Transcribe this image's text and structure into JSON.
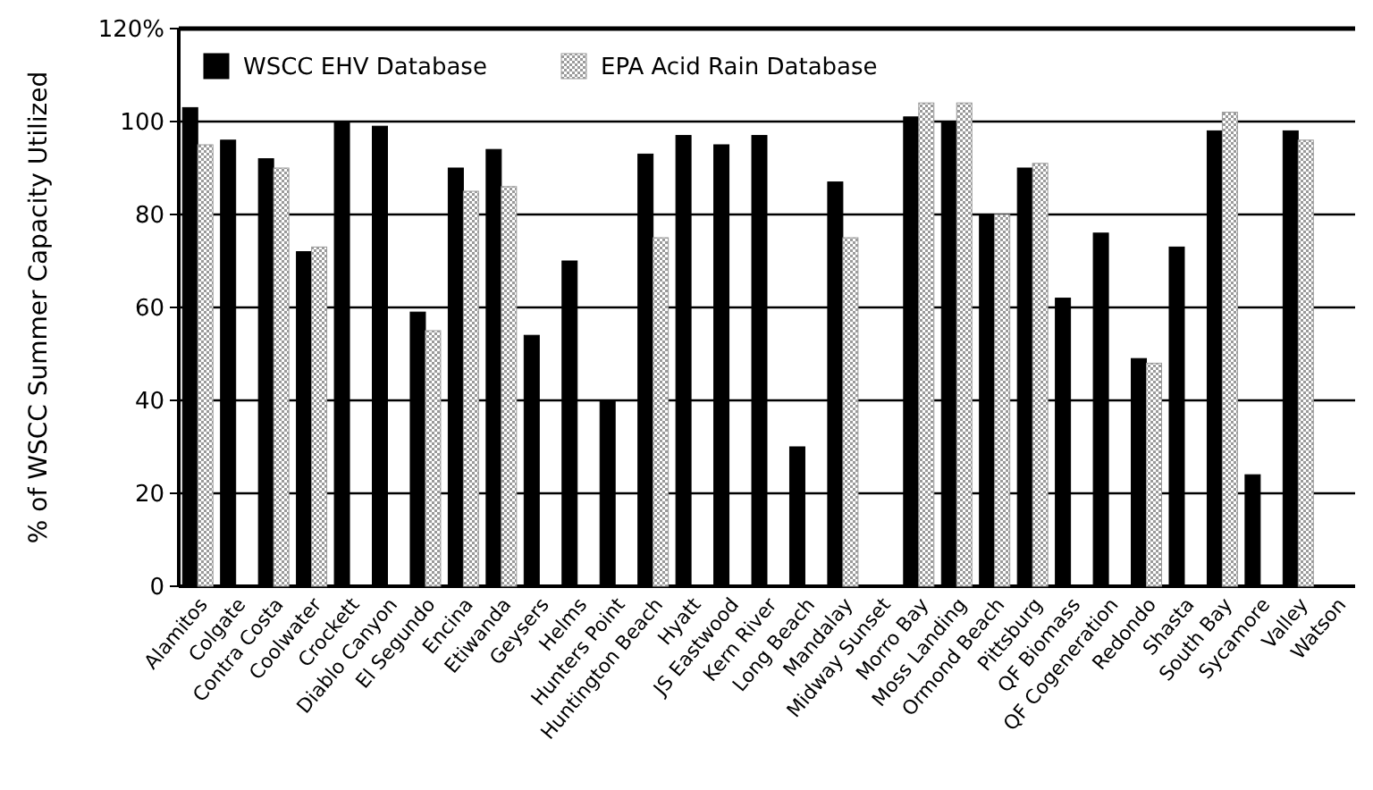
{
  "chart_data": {
    "type": "bar",
    "ylabel": "% of WSCC Summer Capacity Utilized",
    "categories": [
      "Alamitos",
      "Colgate",
      "Contra Costa",
      "Coolwater",
      "Crockett",
      "Diablo Canyon",
      "El Segundo",
      "Encina",
      "Etiwanda",
      "Geysers",
      "Helms",
      "Hunters Point",
      "Huntington Beach",
      "Hyatt",
      "JS Eastwood",
      "Kern River",
      "Long Beach",
      "Mandalay",
      "Midway Sunset",
      "Morro Bay",
      "Moss Landing",
      "Ormond Beach",
      "Pittsburg",
      "QF Biomass",
      "QF Cogeneration",
      "Redondo",
      "Shasta",
      "South Bay",
      "Sycamore",
      "Valley",
      "Watson"
    ],
    "series": [
      {
        "name": "WSCC EHV Database",
        "color": "#000000",
        "values": [
          103,
          96,
          92,
          72,
          100,
          99,
          59,
          90,
          94,
          54,
          70,
          40,
          93,
          97,
          95,
          97,
          30,
          87,
          null,
          101,
          100,
          80,
          90,
          62,
          76,
          49,
          73,
          98,
          24,
          98,
          null
        ]
      },
      {
        "name": "EPA Acid Rain Database",
        "color": "#9a9a9a",
        "values": [
          95,
          null,
          90,
          73,
          null,
          null,
          55,
          85,
          86,
          null,
          null,
          null,
          75,
          null,
          null,
          null,
          null,
          75,
          null,
          104,
          104,
          80,
          91,
          null,
          null,
          48,
          null,
          102,
          null,
          96,
          null
        ]
      }
    ],
    "ylim": [
      0,
      120
    ],
    "yticks": [
      0,
      20,
      40,
      60,
      80,
      100,
      {
        "value": 120,
        "label": "120%"
      }
    ],
    "grid": "y",
    "legend": "top left"
  }
}
